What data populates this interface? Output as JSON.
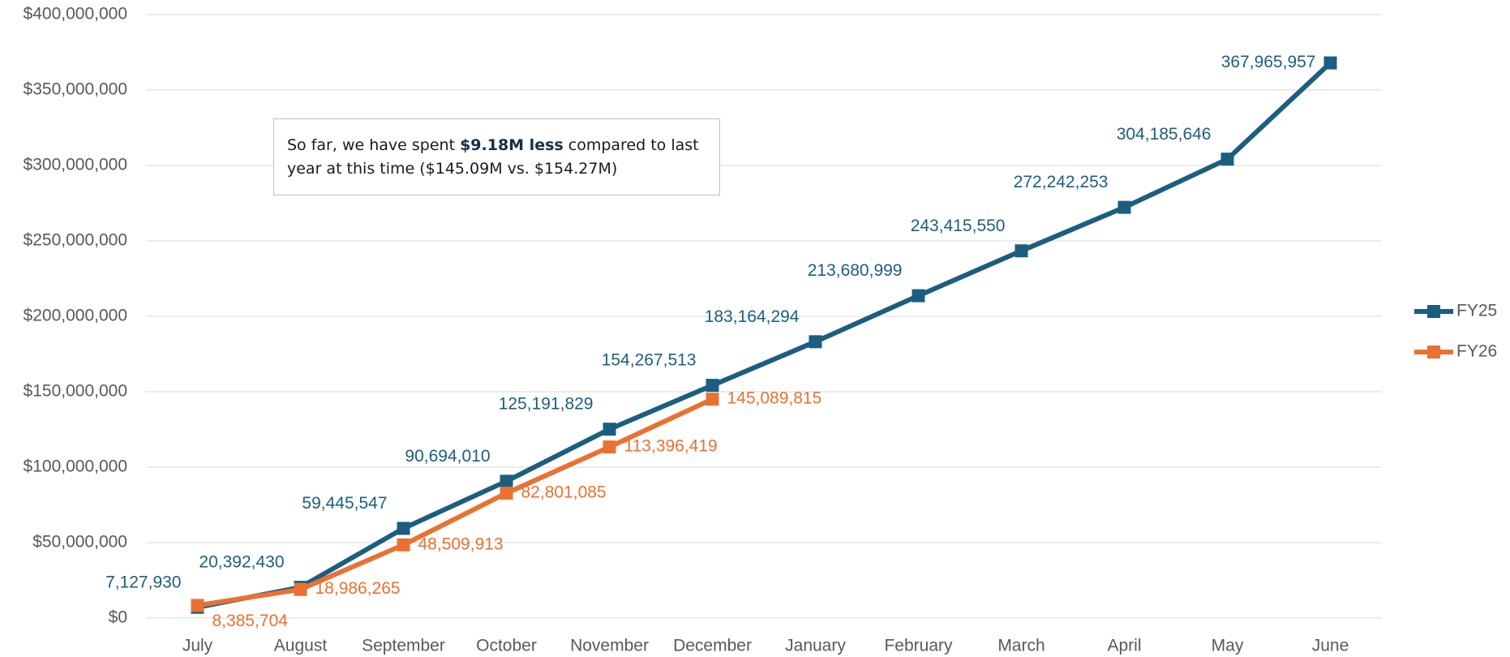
{
  "chart_data": {
    "type": "line",
    "categories": [
      "July",
      "August",
      "September",
      "October",
      "November",
      "December",
      "January",
      "February",
      "March",
      "April",
      "May",
      "June"
    ],
    "series": [
      {
        "name": "FY25",
        "color": "#1b5e80",
        "values": [
          7127930,
          20392430,
          59445547,
          90694010,
          125191829,
          154267513,
          183164294,
          213680999,
          243415550,
          272242253,
          304185646,
          367965957
        ],
        "value_labels": [
          "7,127,930",
          "20,392,430",
          "59,445,547",
          "90,694,010",
          "125,191,829",
          "154,267,513",
          "183,164,294",
          "213,680,999",
          "243,415,550",
          "272,242,253",
          "304,185,646",
          "367,965,957"
        ]
      },
      {
        "name": "FY26",
        "color": "#e97132",
        "values": [
          8385704,
          18986265,
          48509913,
          82801085,
          113396419,
          145089815,
          null,
          null,
          null,
          null,
          null,
          null
        ],
        "value_labels": [
          "8,385,704",
          "18,986,265",
          "48,509,913",
          "82,801,085",
          "113,396,419",
          "145,089,815",
          null,
          null,
          null,
          null,
          null,
          null
        ]
      }
    ],
    "ylim": [
      0,
      400000000
    ],
    "yticks": [
      {
        "value": 0,
        "label": "$0"
      },
      {
        "value": 50000000,
        "label": "$50,000,000"
      },
      {
        "value": 100000000,
        "label": "$100,000,000"
      },
      {
        "value": 150000000,
        "label": "$150,000,000"
      },
      {
        "value": 200000000,
        "label": "$200,000,000"
      },
      {
        "value": 250000000,
        "label": "$250,000,000"
      },
      {
        "value": 300000000,
        "label": "$300,000,000"
      },
      {
        "value": 350000000,
        "label": "$350,000,000"
      },
      {
        "value": 400000000,
        "label": "$400,000,000"
      }
    ],
    "grid": true,
    "legend": "right",
    "annotation": {
      "before": "So far, we have spent ",
      "bold": "$9.18M less",
      "after": " compared to last year at this time ($145.09M vs. $154.27M)"
    }
  }
}
